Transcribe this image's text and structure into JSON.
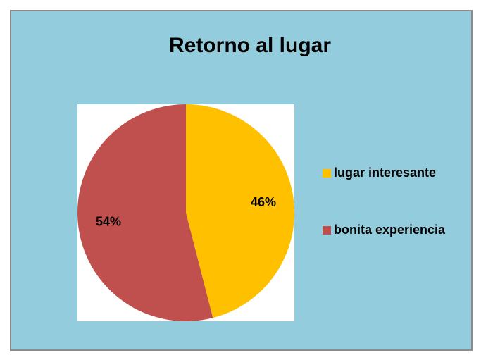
{
  "chart_data": {
    "type": "pie",
    "title": "Retorno al lugar",
    "categories": [
      "lugar interesante",
      "bonita experiencia"
    ],
    "values": [
      46,
      54
    ],
    "value_labels": [
      "46%",
      "54%"
    ],
    "colors": [
      "#FFC000",
      "#C0504D"
    ],
    "legend": "right"
  }
}
